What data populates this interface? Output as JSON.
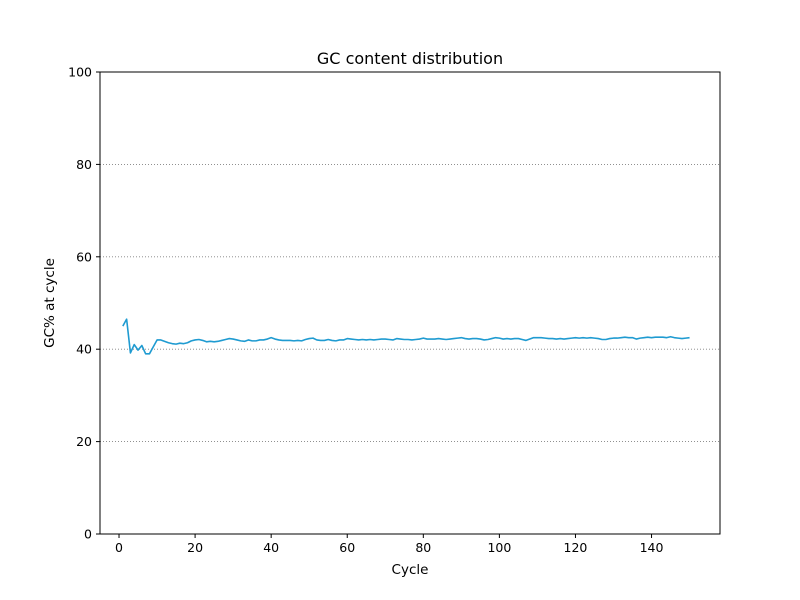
{
  "chart_data": {
    "type": "line",
    "title": "GC content distribution",
    "xlabel": "Cycle",
    "ylabel": "GC% at cycle",
    "xlim": [
      -5,
      158
    ],
    "ylim": [
      0,
      100
    ],
    "xticks": [
      0,
      20,
      40,
      60,
      80,
      100,
      120,
      140
    ],
    "yticks": [
      0,
      20,
      40,
      60,
      80,
      100
    ],
    "grid": "y-dotted",
    "legend": "none",
    "series": [
      {
        "color": "#1f9bd1",
        "x": [
          1,
          2,
          3,
          4,
          5,
          6,
          7,
          8,
          9,
          10,
          11,
          12,
          13,
          14,
          15,
          16,
          17,
          18,
          19,
          20,
          21,
          22,
          23,
          24,
          25,
          26,
          27,
          28,
          29,
          30,
          31,
          32,
          33,
          34,
          35,
          36,
          37,
          38,
          39,
          40,
          41,
          42,
          43,
          44,
          45,
          46,
          47,
          48,
          49,
          50,
          51,
          52,
          53,
          54,
          55,
          56,
          57,
          58,
          59,
          60,
          61,
          62,
          63,
          64,
          65,
          66,
          67,
          68,
          69,
          70,
          71,
          72,
          73,
          74,
          75,
          76,
          77,
          78,
          79,
          80,
          81,
          82,
          83,
          84,
          85,
          86,
          87,
          88,
          89,
          90,
          91,
          92,
          93,
          94,
          95,
          96,
          97,
          98,
          99,
          100,
          101,
          102,
          103,
          104,
          105,
          106,
          107,
          108,
          109,
          110,
          111,
          112,
          113,
          114,
          115,
          116,
          117,
          118,
          119,
          120,
          121,
          122,
          123,
          124,
          125,
          126,
          127,
          128,
          129,
          130,
          131,
          132,
          133,
          134,
          135,
          136,
          137,
          138,
          139,
          140,
          141,
          142,
          143,
          144,
          145,
          146,
          147,
          148,
          149,
          150
        ],
        "y": [
          45.0,
          46.5,
          39.2,
          41.0,
          39.8,
          40.8,
          39.0,
          39.0,
          40.5,
          42.0,
          42.0,
          41.7,
          41.4,
          41.2,
          41.1,
          41.3,
          41.2,
          41.4,
          41.8,
          42.0,
          42.1,
          41.9,
          41.6,
          41.7,
          41.6,
          41.7,
          41.9,
          42.1,
          42.3,
          42.2,
          42.0,
          41.8,
          41.7,
          42.0,
          41.8,
          41.8,
          42.0,
          42.0,
          42.2,
          42.5,
          42.2,
          42.0,
          41.9,
          41.9,
          41.9,
          41.8,
          41.9,
          41.8,
          42.1,
          42.3,
          42.4,
          42.0,
          41.9,
          41.9,
          42.1,
          41.9,
          41.8,
          42.0,
          42.0,
          42.3,
          42.2,
          42.1,
          42.0,
          42.1,
          42.0,
          42.1,
          42.0,
          42.1,
          42.2,
          42.2,
          42.1,
          42.0,
          42.3,
          42.2,
          42.1,
          42.1,
          42.0,
          42.1,
          42.2,
          42.4,
          42.2,
          42.2,
          42.2,
          42.3,
          42.2,
          42.1,
          42.2,
          42.3,
          42.4,
          42.5,
          42.3,
          42.2,
          42.3,
          42.3,
          42.2,
          42.0,
          42.1,
          42.3,
          42.5,
          42.4,
          42.2,
          42.3,
          42.2,
          42.3,
          42.3,
          42.1,
          41.9,
          42.2,
          42.5,
          42.5,
          42.5,
          42.4,
          42.3,
          42.3,
          42.2,
          42.3,
          42.2,
          42.3,
          42.4,
          42.5,
          42.4,
          42.5,
          42.4,
          42.5,
          42.4,
          42.3,
          42.1,
          42.1,
          42.3,
          42.4,
          42.4,
          42.5,
          42.6,
          42.5,
          42.5,
          42.2,
          42.4,
          42.5,
          42.6,
          42.5,
          42.6,
          42.6,
          42.6,
          42.5,
          42.7,
          42.5,
          42.4,
          42.3,
          42.4,
          42.5
        ]
      }
    ]
  }
}
